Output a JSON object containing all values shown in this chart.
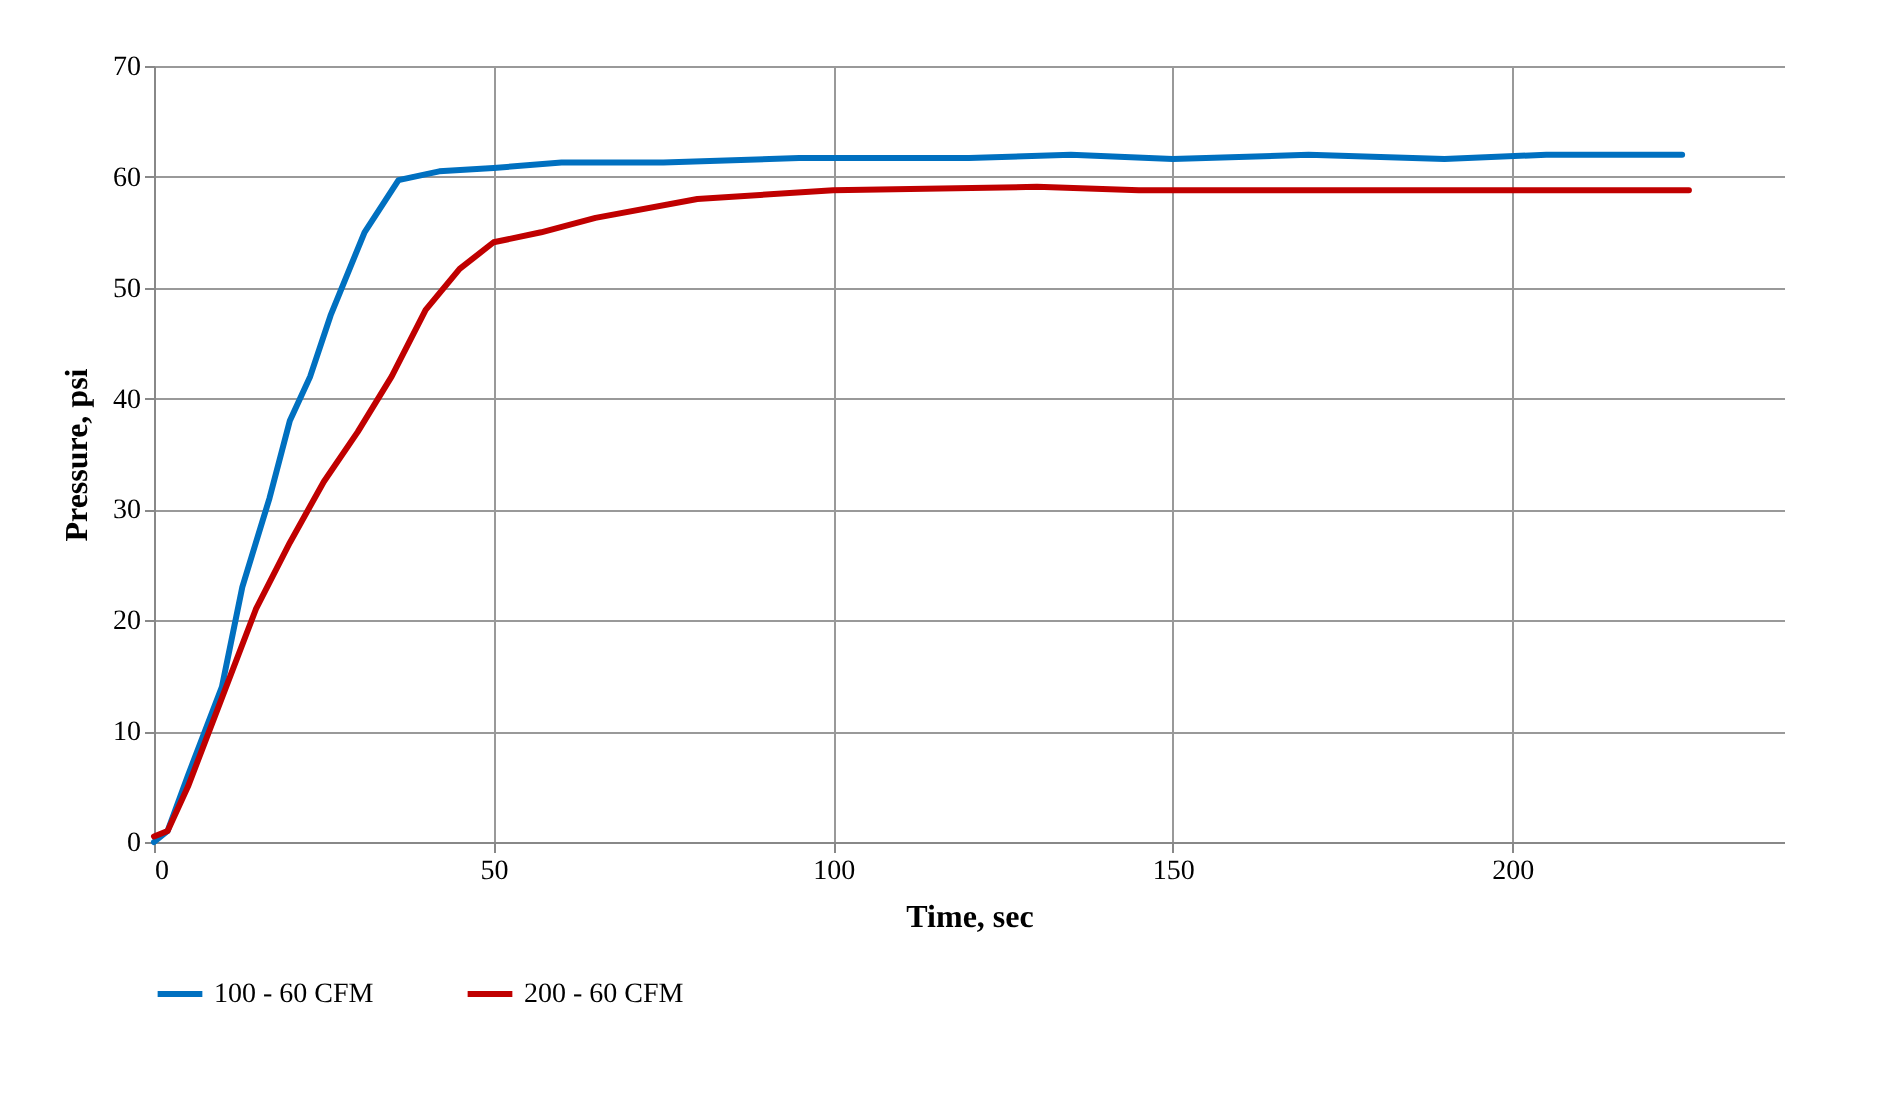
{
  "chart_data": {
    "type": "line",
    "xlabel": "Time, sec",
    "ylabel": "Pressure, psi",
    "xlim": [
      0,
      240
    ],
    "xticks": [
      0,
      50,
      100,
      150,
      200
    ],
    "ylim": [
      0,
      70
    ],
    "yticks": [
      0,
      10,
      20,
      30,
      40,
      50,
      60,
      70
    ],
    "grid": true,
    "legend": "bottom",
    "marker": "none",
    "line_style": "solid",
    "series": [
      {
        "name": "100 - 60 CFM",
        "color": "#0070c0",
        "x": [
          0,
          2,
          5,
          10,
          13,
          17,
          20,
          23,
          26,
          31,
          36,
          42,
          50,
          60,
          75,
          95,
          120,
          135,
          150,
          170,
          190,
          205,
          225
        ],
        "values": [
          0,
          1,
          6,
          14,
          23,
          31,
          38,
          42,
          47.5,
          55,
          59.7,
          60.5,
          60.8,
          61.3,
          61.3,
          61.7,
          61.7,
          62,
          61.6,
          62,
          61.6,
          62,
          62
        ]
      },
      {
        "name": "200 - 60 CFM",
        "color": "#c00000",
        "x": [
          0,
          2,
          5,
          10,
          15,
          20,
          25,
          30,
          35,
          40,
          45,
          50,
          57,
          65,
          80,
          100,
          130,
          145,
          226
        ],
        "values": [
          0.5,
          1,
          5,
          13,
          21,
          27,
          32.5,
          37,
          42,
          48,
          51.7,
          54.1,
          55,
          56.3,
          58,
          58.8,
          59.1,
          58.8,
          58.8
        ]
      }
    ]
  }
}
